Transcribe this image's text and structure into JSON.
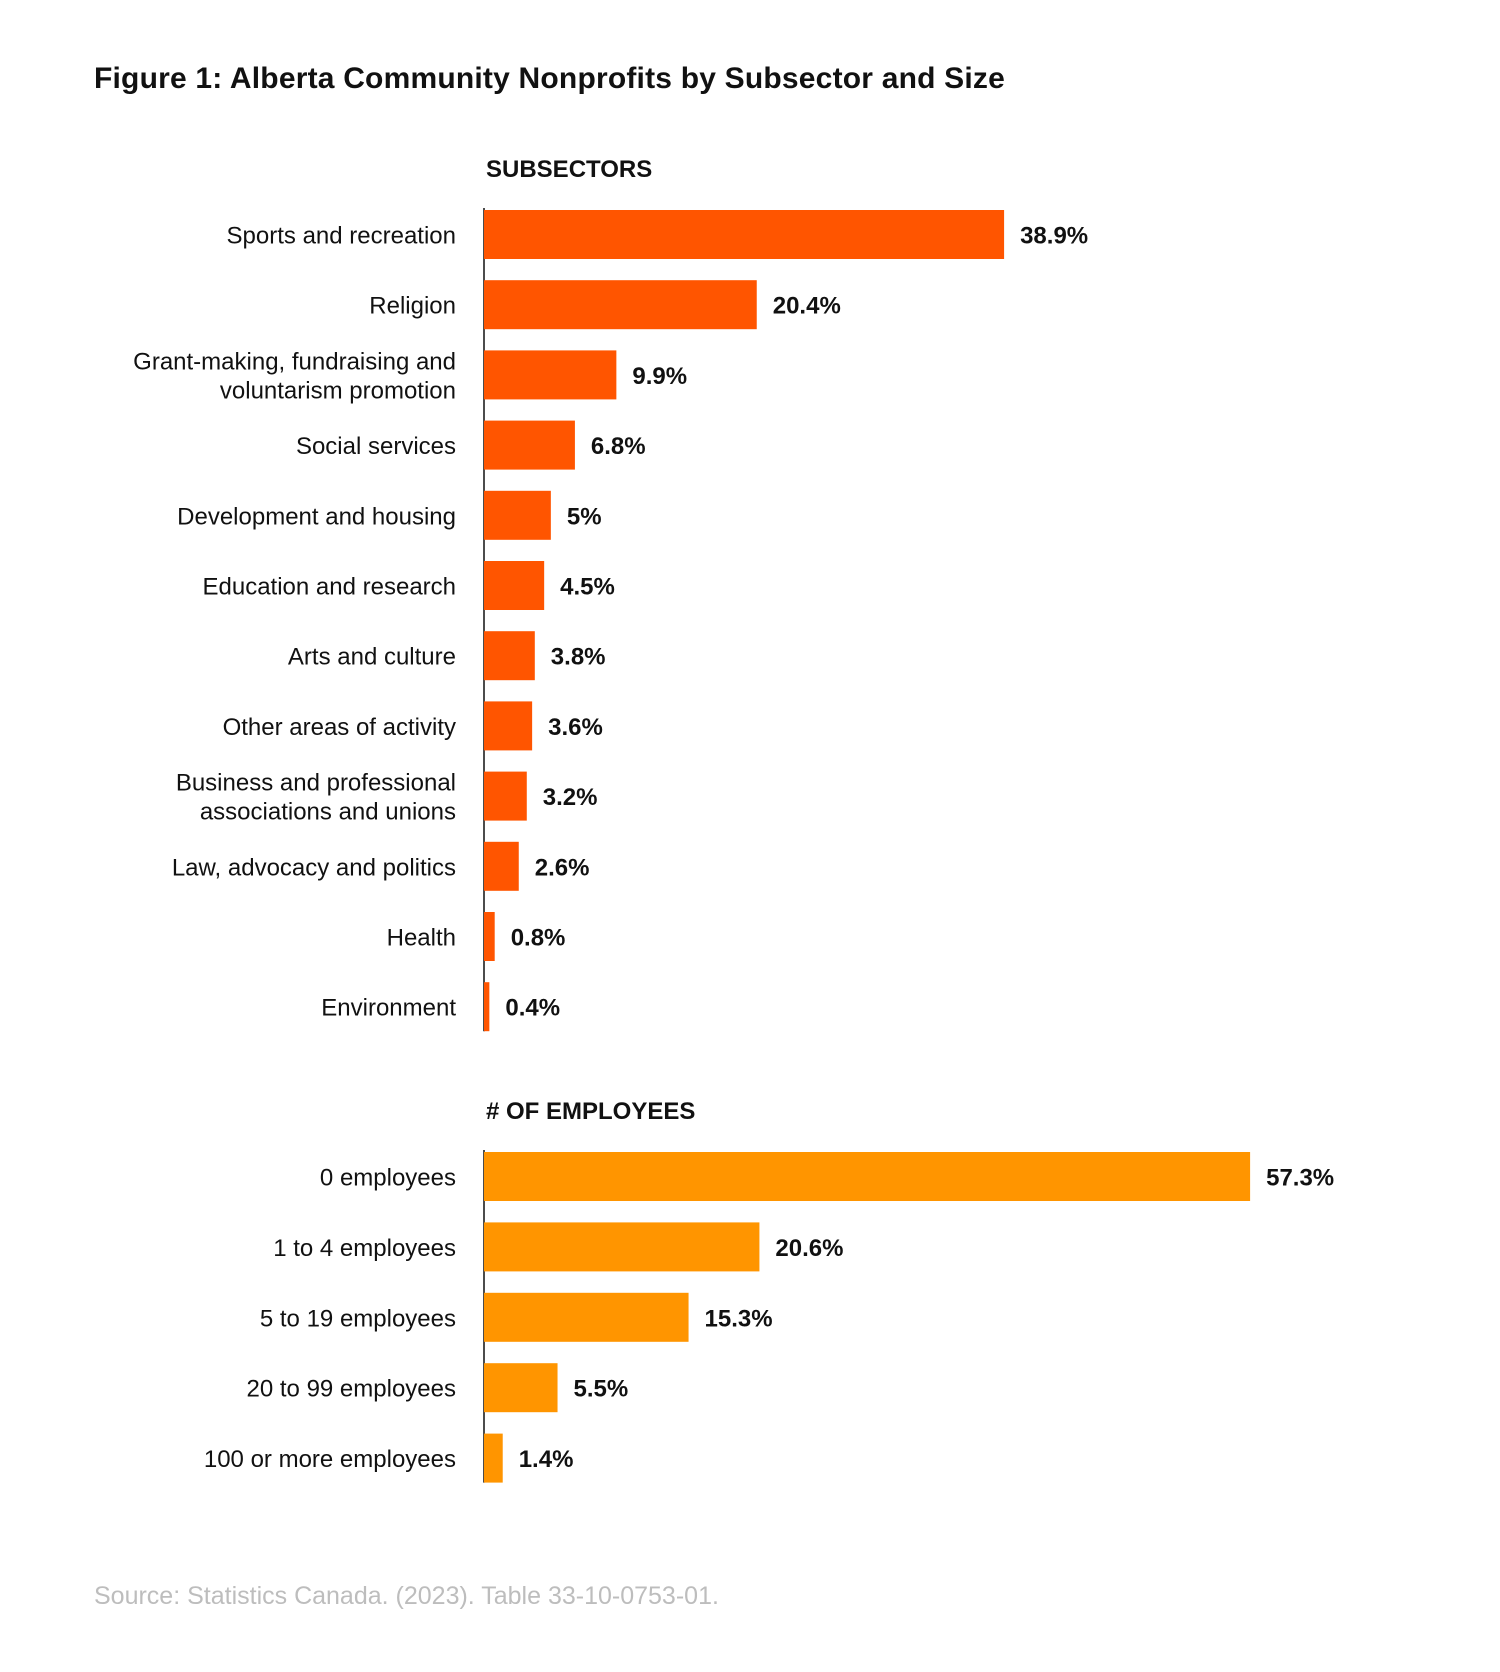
{
  "figure": {
    "title": "Figure 1: Alberta Community Nonprofits by Subsector and Size",
    "source": "Source: Statistics Canada. (2023). Table 33-10-0753-01."
  },
  "colors": {
    "subsector_bar": "#FF5500",
    "employee_bar": "#FF9500",
    "text": "#111111",
    "source_text": "#BDBDBD"
  },
  "chart_data": [
    {
      "type": "bar",
      "orientation": "horizontal",
      "title": "SUBSECTORS",
      "categories": [
        [
          "Sports and recreation"
        ],
        [
          "Religion"
        ],
        [
          "Grant-making, fundraising and",
          "voluntarism promotion"
        ],
        [
          "Social services"
        ],
        [
          "Development and housing"
        ],
        [
          "Education and research"
        ],
        [
          "Arts and culture"
        ],
        [
          "Other areas of activity"
        ],
        [
          "Business and professional",
          "associations and unions"
        ],
        [
          "Law, advocacy and politics"
        ],
        [
          "Health"
        ],
        [
          "Environment"
        ]
      ],
      "values": [
        38.9,
        20.4,
        9.9,
        6.8,
        5,
        4.5,
        3.8,
        3.6,
        3.2,
        2.6,
        0.8,
        0.4
      ],
      "value_labels": [
        "38.9%",
        "20.4%",
        "9.9%",
        "6.8%",
        "5%",
        "4.5%",
        "3.8%",
        "3.6%",
        "3.2%",
        "2.6%",
        "0.8%",
        "0.4%"
      ],
      "unit": "%",
      "color": "#FF5500",
      "grid": false
    },
    {
      "type": "bar",
      "orientation": "horizontal",
      "title": "# OF EMPLOYEES",
      "categories": [
        [
          "0 employees"
        ],
        [
          "1 to 4 employees"
        ],
        [
          "5 to 19 employees"
        ],
        [
          "20 to 99 employees"
        ],
        [
          "100 or more employees"
        ]
      ],
      "values": [
        57.3,
        20.6,
        15.3,
        5.5,
        1.4
      ],
      "value_labels": [
        "57.3%",
        "20.6%",
        "15.3%",
        "5.5%",
        "1.4%"
      ],
      "unit": "%",
      "color": "#FF9500",
      "grid": false
    }
  ]
}
